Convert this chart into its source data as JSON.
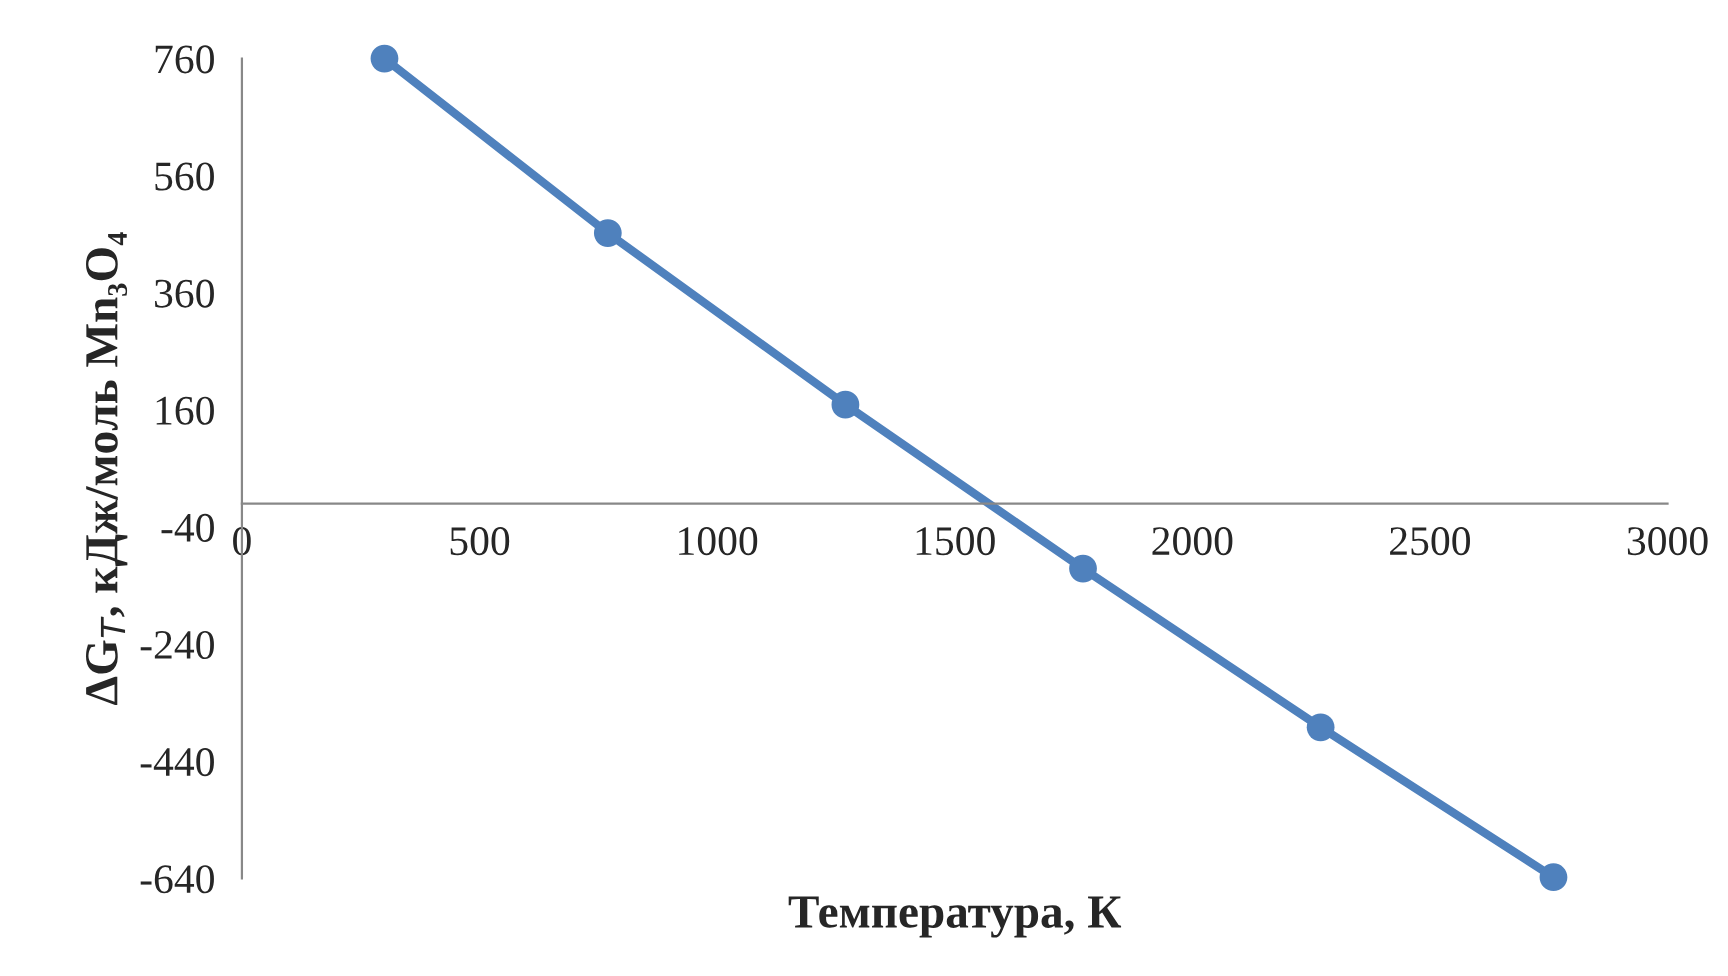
{
  "chart_data": {
    "type": "line",
    "xlabel": "Температура, К",
    "ylabel": "ΔG$_{T}$, кДж/моль Mn₃O₄",
    "x": [
      300,
      770,
      1270,
      1770,
      2270,
      2760
    ],
    "series": [
      {
        "color": "#4f81bd",
        "values": [
          760,
          462,
          169,
          -111,
          -382,
          -638
        ]
      }
    ],
    "xlim": [
      0,
      3000
    ],
    "xticks": [
      0,
      500,
      1000,
      1500,
      2000,
      2500,
      3000
    ],
    "ylim": [
      -640,
      760
    ],
    "yticks": [
      -640,
      -440,
      -240,
      -40,
      160,
      360,
      560,
      760
    ],
    "grid": false,
    "marker": "circle",
    "line_style": "solid"
  }
}
